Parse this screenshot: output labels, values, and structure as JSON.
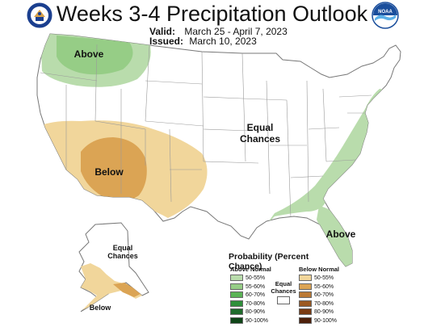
{
  "title": "Weeks 3-4 Precipitation Outlook",
  "valid_label": "Valid:",
  "valid_value": "March 25 - April 7, 2023",
  "issued_label": "Issued:",
  "issued_value": "March 10, 2023",
  "logo_right_text": "NOAA",
  "map_labels": {
    "above_nw": "Above",
    "below_sw": "Below",
    "equal_conus_line1": "Equal",
    "equal_conus_line2": "Chances",
    "above_se": "Above",
    "equal_ak_line1": "Equal",
    "equal_ak_line2": "Chances",
    "below_ak": "Below"
  },
  "legend": {
    "title": "Probability (Percent Chance)",
    "above_header": "Above Normal",
    "below_header": "Below Normal",
    "equal_line1": "Equal",
    "equal_line2": "Chances",
    "above": [
      {
        "label": "50-55%",
        "color": "#b9dcac"
      },
      {
        "label": "55-60%",
        "color": "#96cd86"
      },
      {
        "label": "60-70%",
        "color": "#5bb356"
      },
      {
        "label": "70-80%",
        "color": "#2f8f3a"
      },
      {
        "label": "80-90%",
        "color": "#1f6b2c"
      },
      {
        "label": "90-100%",
        "color": "#0f4518"
      }
    ],
    "below": [
      {
        "label": "50-55%",
        "color": "#f1d69b"
      },
      {
        "label": "55-60%",
        "color": "#dba454"
      },
      {
        "label": "60-70%",
        "color": "#bb7a35"
      },
      {
        "label": "70-80%",
        "color": "#9b5a22"
      },
      {
        "label": "80-90%",
        "color": "#7a3b12"
      },
      {
        "label": "90-100%",
        "color": "#4e210a"
      }
    ]
  },
  "colors": {
    "above_light": "#b9dcac",
    "above_mid": "#96cd86",
    "below_light": "#f1d69b",
    "below_mid": "#dba454",
    "border": "#888888"
  }
}
